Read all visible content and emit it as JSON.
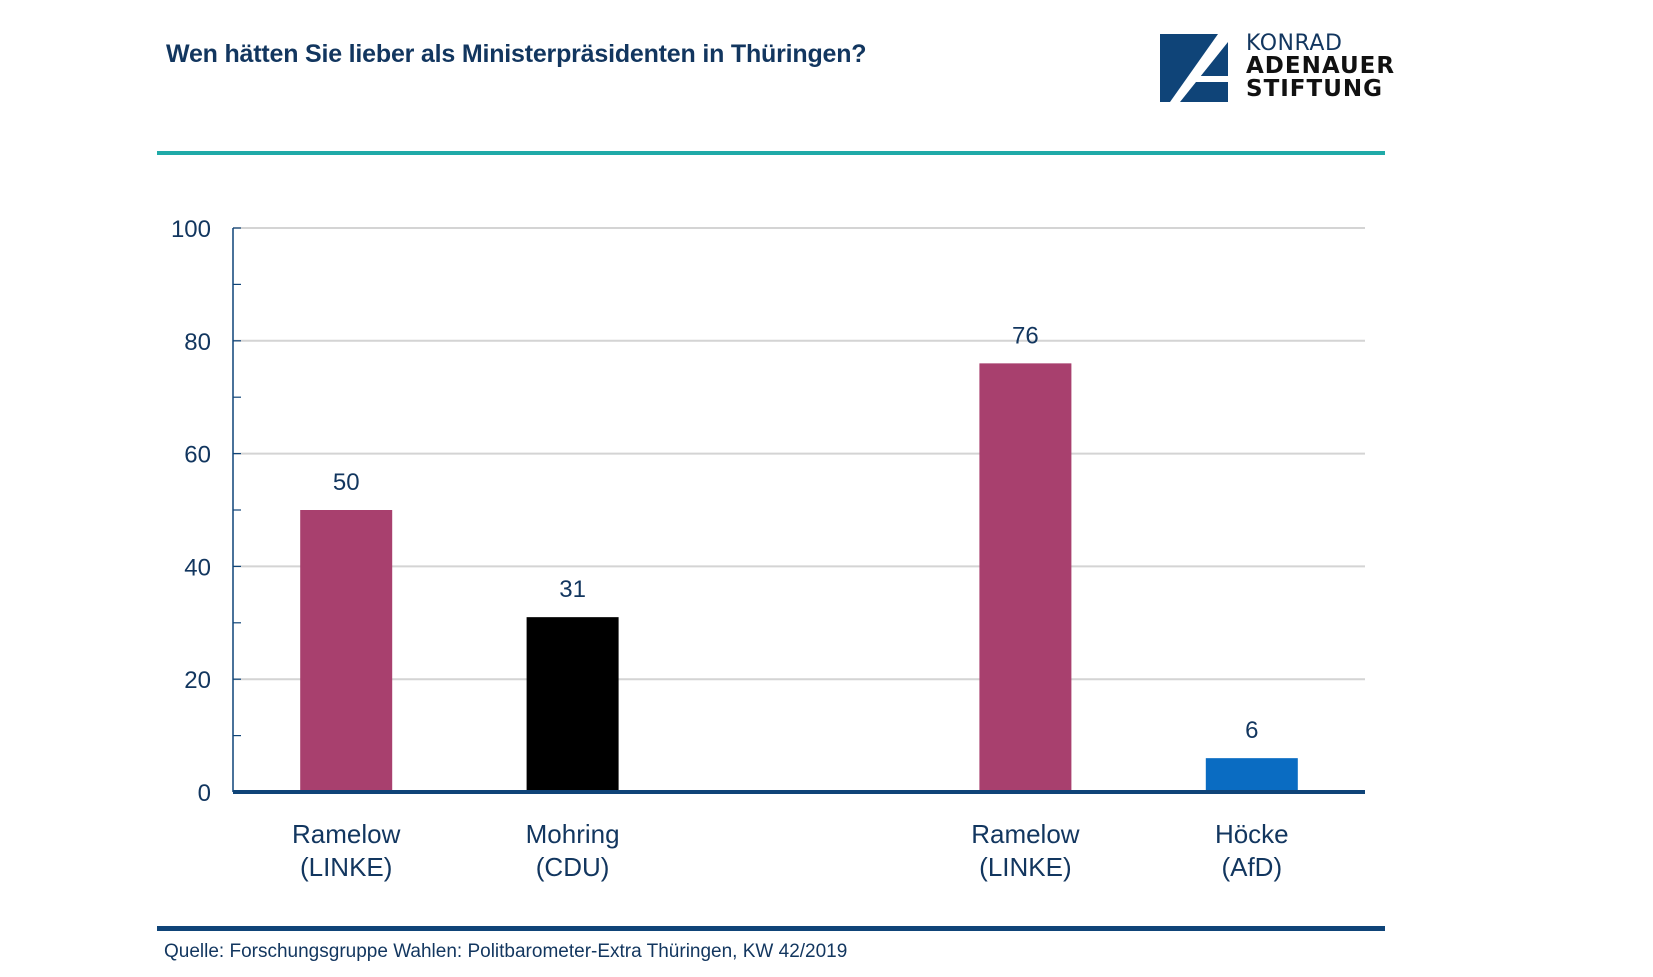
{
  "header": {
    "title": "Wen hätten Sie lieber als Ministerpräsidenten in Thüringen?"
  },
  "logo": {
    "icon": "kas-a-logo-icon",
    "line1": "KONRAD",
    "line2": "ADENAUER",
    "line3": "STIFTUNG",
    "color": "#0f4478"
  },
  "footer": {
    "source": "Quelle: Forschungsgruppe Wahlen: Politbarometer-Extra Thüringen, KW 42/2019"
  },
  "colors": {
    "accent_rule": "#20aaa8",
    "axis": "#0f4478",
    "gridline": "#d4d4d4",
    "text": "#12365f"
  },
  "chart_data": {
    "type": "bar",
    "title": "Wen hätten Sie lieber als Ministerpräsidenten in Thüringen?",
    "xlabel": "",
    "ylabel": "",
    "ylim": [
      0,
      100
    ],
    "yticks": [
      0,
      20,
      40,
      60,
      80,
      100
    ],
    "minor_ticks_every": 10,
    "grid": true,
    "groups": [
      {
        "bars": [
          {
            "label_line1": "Ramelow",
            "label_line2": "(LINKE)",
            "value": 50,
            "color": "#a8406e"
          },
          {
            "label_line1": "Mohring",
            "label_line2": "(CDU)",
            "value": 31,
            "color": "#000000"
          }
        ]
      },
      {
        "bars": [
          {
            "label_line1": "Ramelow",
            "label_line2": "(LINKE)",
            "value": 76,
            "color": "#a8406e"
          },
          {
            "label_line1": "Höcke",
            "label_line2": "(AfD)",
            "value": 6,
            "color": "#0a6cc2"
          }
        ]
      }
    ],
    "categories": [
      "Ramelow (LINKE)",
      "Mohring (CDU)",
      "Ramelow (LINKE)",
      "Höcke (AfD)"
    ],
    "values": [
      50,
      31,
      76,
      6
    ],
    "data_labels": [
      "50",
      "31",
      "76",
      "6"
    ]
  }
}
